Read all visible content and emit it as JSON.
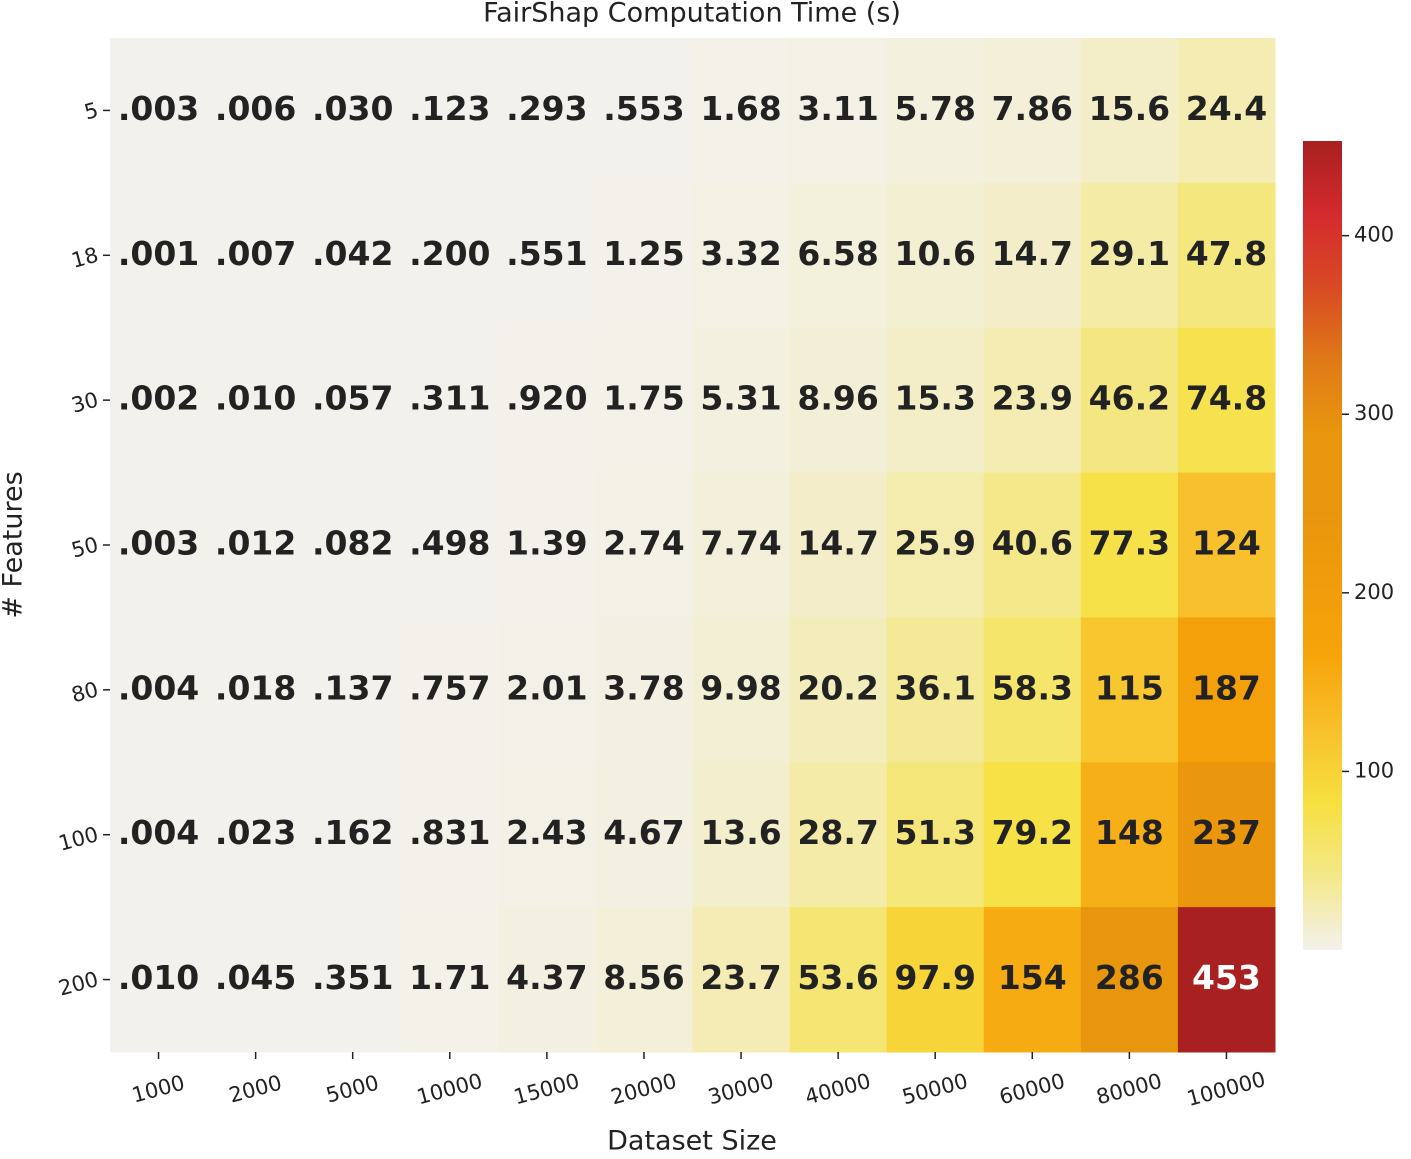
{
  "chart_data": {
    "type": "heatmap",
    "title": "FairShap Computation Time (s)",
    "xlabel": "Dataset Size",
    "ylabel": "# Features",
    "x": [
      1000,
      2000,
      5000,
      10000,
      15000,
      20000,
      30000,
      40000,
      50000,
      60000,
      80000,
      100000
    ],
    "y": [
      5,
      18,
      30,
      50,
      80,
      100,
      200
    ],
    "values": [
      [
        0.003,
        0.006,
        0.03,
        0.123,
        0.293,
        0.553,
        1.68,
        3.11,
        5.78,
        7.86,
        15.6,
        24.4
      ],
      [
        0.001,
        0.007,
        0.042,
        0.2,
        0.551,
        1.25,
        3.32,
        6.58,
        10.6,
        14.7,
        29.1,
        47.8
      ],
      [
        0.002,
        0.01,
        0.057,
        0.311,
        0.92,
        1.75,
        5.31,
        8.96,
        15.3,
        23.9,
        46.2,
        74.8
      ],
      [
        0.003,
        0.012,
        0.082,
        0.498,
        1.39,
        2.74,
        7.74,
        14.7,
        25.9,
        40.6,
        77.3,
        124
      ],
      [
        0.004,
        0.018,
        0.137,
        0.757,
        2.01,
        3.78,
        9.98,
        20.2,
        36.1,
        58.3,
        115,
        187
      ],
      [
        0.004,
        0.023,
        0.162,
        0.831,
        2.43,
        4.67,
        13.6,
        28.7,
        51.3,
        79.2,
        148,
        237
      ],
      [
        0.01,
        0.045,
        0.351,
        1.71,
        4.37,
        8.56,
        23.7,
        53.6,
        97.9,
        154,
        286,
        453
      ]
    ],
    "value_labels": [
      [
        ".003",
        ".006",
        ".030",
        ".123",
        ".293",
        ".553",
        "1.68",
        "3.11",
        "5.78",
        "7.86",
        "15.6",
        "24.4"
      ],
      [
        ".001",
        ".007",
        ".042",
        ".200",
        ".551",
        "1.25",
        "3.32",
        "6.58",
        "10.6",
        "14.7",
        "29.1",
        "47.8"
      ],
      [
        ".002",
        ".010",
        ".057",
        ".311",
        ".920",
        "1.75",
        "5.31",
        "8.96",
        "15.3",
        "23.9",
        "46.2",
        "74.8"
      ],
      [
        ".003",
        ".012",
        ".082",
        ".498",
        "1.39",
        "2.74",
        "7.74",
        "14.7",
        "25.9",
        "40.6",
        "77.3",
        "124"
      ],
      [
        ".004",
        ".018",
        ".137",
        ".757",
        "2.01",
        "3.78",
        "9.98",
        "20.2",
        "36.1",
        "58.3",
        "115",
        "187"
      ],
      [
        ".004",
        ".023",
        ".162",
        ".831",
        "2.43",
        "4.67",
        "13.6",
        "28.7",
        "51.3",
        "79.2",
        "148",
        "237"
      ],
      [
        ".010",
        ".045",
        ".351",
        "1.71",
        "4.37",
        "8.56",
        "23.7",
        "53.6",
        "97.9",
        "154",
        "286",
        "453"
      ]
    ],
    "clim": [
      0.001,
      453
    ],
    "cticks": [
      100,
      200,
      300,
      400
    ],
    "colormap": [
      "#f3f1ec",
      "#f4e88a",
      "#f6e040",
      "#f8c02c",
      "#f7a40a",
      "#f09c0c",
      "#e8960e",
      "#e8960e",
      "#e07a18",
      "#d84a24",
      "#d42a2e",
      "#a82020"
    ]
  }
}
